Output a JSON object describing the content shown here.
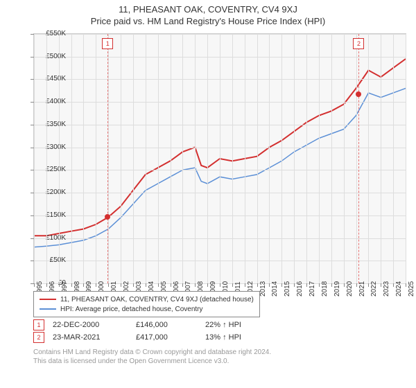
{
  "title1": "11, PHEASANT OAK, COVENTRY, CV4 9XJ",
  "title2": "Price paid vs. HM Land Registry's House Price Index (HPI)",
  "chart": {
    "type": "line",
    "background": "#f7f7f7",
    "grid_color": "#dddddd",
    "border_color": "#cccccc",
    "y": {
      "min": 0,
      "max": 550000,
      "step": 50000,
      "format": "£K",
      "ticks": [
        "£0",
        "£50K",
        "£100K",
        "£150K",
        "£200K",
        "£250K",
        "£300K",
        "£350K",
        "£400K",
        "£450K",
        "£500K",
        "£550K"
      ]
    },
    "x": {
      "min": 1995,
      "max": 2025,
      "step": 1,
      "labels": [
        "1995",
        "1996",
        "1997",
        "1998",
        "1999",
        "2000",
        "2001",
        "2002",
        "2003",
        "2004",
        "2005",
        "2006",
        "2007",
        "2008",
        "2009",
        "2010",
        "2011",
        "2012",
        "2013",
        "2014",
        "2015",
        "2016",
        "2017",
        "2018",
        "2019",
        "2020",
        "2021",
        "2022",
        "2023",
        "2024",
        "2025"
      ]
    },
    "series": [
      {
        "name": "11, PHEASANT OAK, COVENTRY, CV4 9XJ (detached house)",
        "color": "#d32f2f",
        "width": 2,
        "years": [
          1995,
          1996,
          1997,
          1998,
          1999,
          2000,
          2001,
          2002,
          2003,
          2004,
          2005,
          2006,
          2007,
          2008,
          2008.5,
          2009,
          2010,
          2011,
          2012,
          2013,
          2014,
          2015,
          2016,
          2017,
          2018,
          2019,
          2020,
          2021,
          2021.5,
          2022,
          2023,
          2024,
          2025
        ],
        "values": [
          105000,
          105000,
          110000,
          115000,
          120000,
          130000,
          146000,
          170000,
          205000,
          240000,
          255000,
          270000,
          290000,
          300000,
          260000,
          255000,
          275000,
          270000,
          275000,
          280000,
          300000,
          315000,
          335000,
          355000,
          370000,
          380000,
          395000,
          430000,
          450000,
          470000,
          455000,
          475000,
          495000
        ]
      },
      {
        "name": "HPI: Average price, detached house, Coventry",
        "color": "#5b8fd6",
        "width": 1.5,
        "years": [
          1995,
          1996,
          1997,
          1998,
          1999,
          2000,
          2001,
          2002,
          2003,
          2004,
          2005,
          2006,
          2007,
          2008,
          2008.5,
          2009,
          2010,
          2011,
          2012,
          2013,
          2014,
          2015,
          2016,
          2017,
          2018,
          2019,
          2020,
          2021,
          2022,
          2023,
          2024,
          2025
        ],
        "values": [
          80000,
          82000,
          85000,
          90000,
          95000,
          105000,
          120000,
          145000,
          175000,
          205000,
          220000,
          235000,
          250000,
          255000,
          225000,
          220000,
          235000,
          230000,
          235000,
          240000,
          255000,
          270000,
          290000,
          305000,
          320000,
          330000,
          340000,
          370000,
          420000,
          410000,
          420000,
          430000
        ]
      }
    ],
    "markers": [
      {
        "num": "1",
        "year": 2000.95,
        "value": 146000
      },
      {
        "num": "2",
        "year": 2021.22,
        "value": 417000
      }
    ]
  },
  "legend": [
    {
      "color": "#d32f2f",
      "label": "11, PHEASANT OAK, COVENTRY, CV4 9XJ (detached house)"
    },
    {
      "color": "#5b8fd6",
      "label": "HPI: Average price, detached house, Coventry"
    }
  ],
  "sales": [
    {
      "num": "1",
      "date": "22-DEC-2000",
      "price": "£146,000",
      "hpi": "22% ↑ HPI"
    },
    {
      "num": "2",
      "date": "23-MAR-2021",
      "price": "£417,000",
      "hpi": "13% ↑ HPI"
    }
  ],
  "footer": {
    "line1": "Contains HM Land Registry data © Crown copyright and database right 2024.",
    "line2": "This data is licensed under the Open Government Licence v3.0."
  }
}
